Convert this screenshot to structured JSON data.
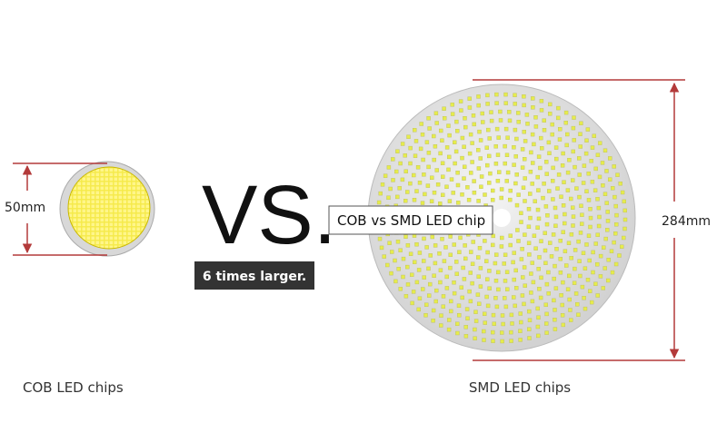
{
  "left": {
    "dimension": "50mm",
    "caption": "COB LED chips"
  },
  "vs": "VS.",
  "tooltip": "COB vs SMD LED chip",
  "badge": "6 times larger.",
  "right": {
    "dimension": "284mm",
    "caption": "SMD LED chips"
  }
}
